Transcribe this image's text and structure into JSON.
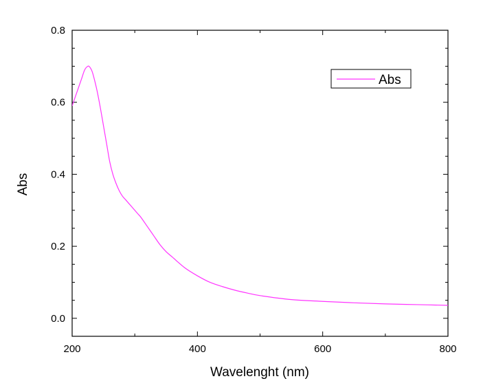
{
  "chart_data": {
    "type": "line",
    "title": "",
    "xlabel": "Wavelenght (nm)",
    "ylabel": "Abs",
    "xlim": [
      200,
      800
    ],
    "ylim": [
      -0.05,
      0.8
    ],
    "x_ticks": [
      200,
      400,
      600,
      800
    ],
    "x_tick_labels": [
      "200",
      "400",
      "600",
      "800"
    ],
    "y_ticks": [
      0.0,
      0.2,
      0.4,
      0.6,
      0.8
    ],
    "y_tick_labels": [
      "0.0",
      "0.2",
      "0.4",
      "0.6",
      "0.8"
    ],
    "grid": false,
    "legend_position": "top-right",
    "series": [
      {
        "name": "Abs",
        "color": "#ff33ff",
        "x": [
          200,
          205,
          210,
          215,
          220,
          225,
          228,
          232,
          236,
          240,
          245,
          250,
          255,
          260,
          265,
          270,
          275,
          280,
          285,
          290,
          295,
          300,
          305,
          310,
          320,
          330,
          340,
          350,
          360,
          380,
          400,
          420,
          440,
          460,
          480,
          500,
          550,
          600,
          650,
          700,
          750,
          800
        ],
        "y": [
          0.59,
          0.615,
          0.64,
          0.665,
          0.69,
          0.7,
          0.698,
          0.685,
          0.66,
          0.63,
          0.585,
          0.535,
          0.485,
          0.435,
          0.4,
          0.375,
          0.355,
          0.34,
          0.33,
          0.32,
          0.31,
          0.3,
          0.29,
          0.28,
          0.255,
          0.23,
          0.205,
          0.185,
          0.17,
          0.14,
          0.118,
          0.1,
          0.088,
          0.078,
          0.07,
          0.063,
          0.052,
          0.047,
          0.043,
          0.04,
          0.038,
          0.036
        ]
      }
    ]
  }
}
